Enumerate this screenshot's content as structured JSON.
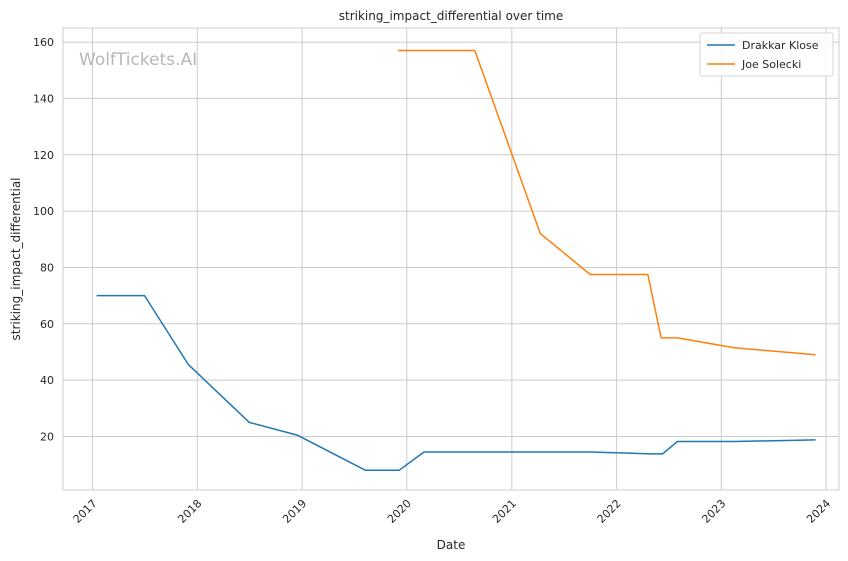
{
  "chart_data": {
    "type": "line",
    "title": "striking_impact_differential over time",
    "xlabel": "Date",
    "ylabel": "striking_impact_differential",
    "x_ticks": [
      "2017",
      "2018",
      "2019",
      "2020",
      "2021",
      "2022",
      "2023",
      "2024"
    ],
    "y_ticks": [
      20,
      40,
      60,
      80,
      100,
      120,
      140,
      160
    ],
    "xlim": [
      "2016-09-20",
      "2024-02-15"
    ],
    "ylim": [
      1,
      165
    ],
    "grid": true,
    "legend_position": "top-right",
    "watermark": "WolfTickets.AI",
    "series": [
      {
        "name": "Drakkar Klose",
        "color": "#1f77b4",
        "points": [
          {
            "x": "2017-01-15",
            "y": 70
          },
          {
            "x": "2017-07-01",
            "y": 70
          },
          {
            "x": "2017-12-01",
            "y": 45.5
          },
          {
            "x": "2018-07-01",
            "y": 25
          },
          {
            "x": "2018-12-15",
            "y": 20.5
          },
          {
            "x": "2019-08-10",
            "y": 8
          },
          {
            "x": "2019-12-05",
            "y": 8
          },
          {
            "x": "2020-03-01",
            "y": 14.5
          },
          {
            "x": "2021-10-01",
            "y": 14.5
          },
          {
            "x": "2022-05-01",
            "y": 13.8
          },
          {
            "x": "2022-06-10",
            "y": 13.8
          },
          {
            "x": "2022-08-01",
            "y": 18.2
          },
          {
            "x": "2023-02-15",
            "y": 18.2
          },
          {
            "x": "2023-11-25",
            "y": 18.8
          }
        ]
      },
      {
        "name": "Joe Solecki",
        "color": "#ff7f0e",
        "points": [
          {
            "x": "2019-12-01",
            "y": 157
          },
          {
            "x": "2020-08-25",
            "y": 157
          },
          {
            "x": "2021-04-10",
            "y": 92
          },
          {
            "x": "2021-10-01",
            "y": 77.5
          },
          {
            "x": "2022-04-20",
            "y": 77.5
          },
          {
            "x": "2022-06-05",
            "y": 55
          },
          {
            "x": "2022-08-01",
            "y": 55
          },
          {
            "x": "2023-02-15",
            "y": 51.5
          },
          {
            "x": "2023-11-25",
            "y": 49
          }
        ]
      }
    ]
  }
}
